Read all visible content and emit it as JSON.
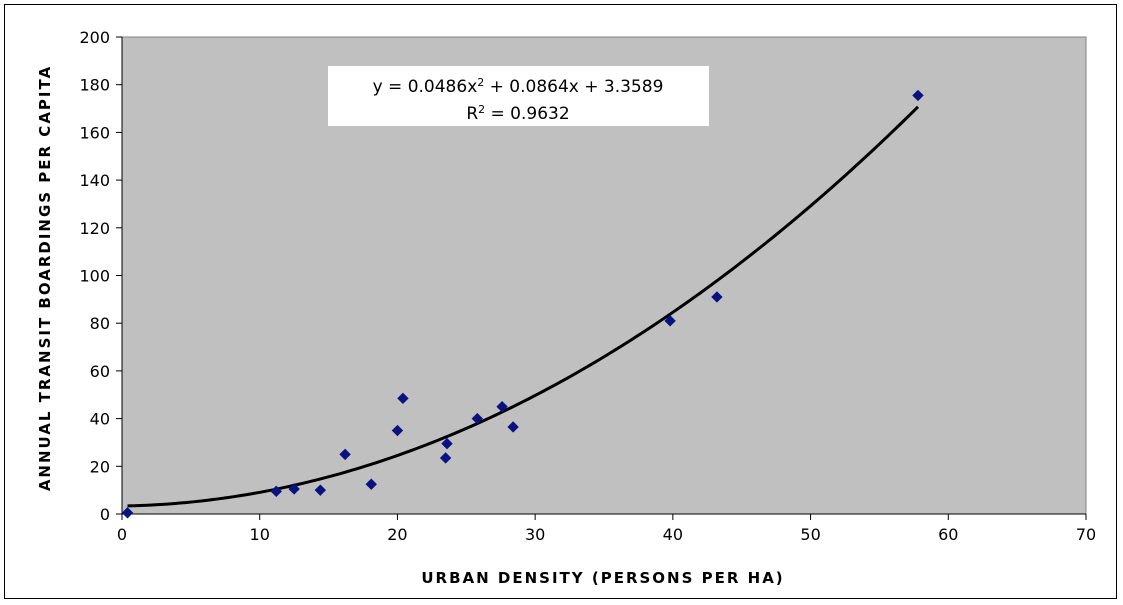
{
  "chart_data": {
    "type": "scatter",
    "title": "",
    "xlabel": "URBAN DENSITY (PERSONS PER HA)",
    "ylabel": "ANNUAL TRANSIT BOARDINGS PER CAPITA",
    "xlim": [
      0,
      70
    ],
    "ylim": [
      0,
      200
    ],
    "x_ticks": [
      0,
      10,
      20,
      30,
      40,
      50,
      60,
      70
    ],
    "y_ticks": [
      0,
      20,
      40,
      60,
      80,
      100,
      120,
      140,
      160,
      180,
      200
    ],
    "grid": false,
    "legend": "none",
    "series": [
      {
        "marker": "diamond",
        "color": "#0b1280",
        "points": [
          {
            "x": 0.4,
            "y": 0.5
          },
          {
            "x": 11.2,
            "y": 9.5
          },
          {
            "x": 12.5,
            "y": 10.5
          },
          {
            "x": 14.4,
            "y": 10
          },
          {
            "x": 16.2,
            "y": 25
          },
          {
            "x": 18.1,
            "y": 12.5
          },
          {
            "x": 20.0,
            "y": 35
          },
          {
            "x": 20.4,
            "y": 48.5
          },
          {
            "x": 23.5,
            "y": 23.5
          },
          {
            "x": 23.6,
            "y": 29.5
          },
          {
            "x": 25.8,
            "y": 40
          },
          {
            "x": 27.6,
            "y": 45
          },
          {
            "x": 28.4,
            "y": 36.5
          },
          {
            "x": 39.8,
            "y": 81
          },
          {
            "x": 43.2,
            "y": 91
          },
          {
            "x": 57.8,
            "y": 175.5
          }
        ]
      }
    ],
    "trendline": {
      "type": "polynomial",
      "coefficients": [
        0.0486,
        0.0864,
        3.3589
      ],
      "x_range": [
        0.4,
        57.8
      ],
      "color": "#000000",
      "equation_label_main": "y = 0.0486x",
      "equation_label_sup": "2",
      "equation_label_rest": " + 0.0864x + 3.3589",
      "r2_label_main": "R",
      "r2_label_sup": "2",
      "r2_label_rest": " = 0.9632"
    },
    "plot_background": "#c0c0c0"
  }
}
